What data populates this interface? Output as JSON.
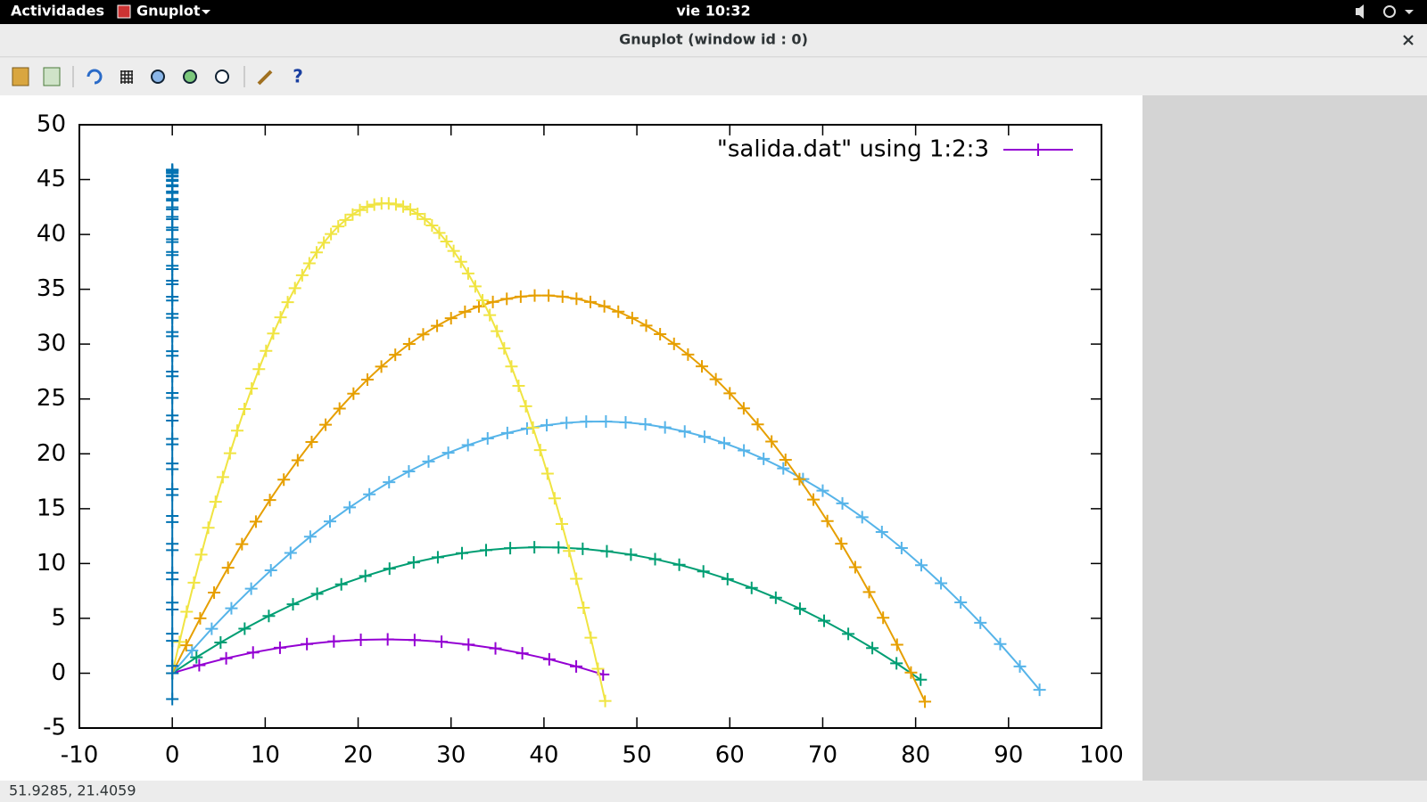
{
  "top_bar": {
    "activities": "Actividades",
    "app": "Gnuplot",
    "clock": "vie 10:32"
  },
  "window": {
    "title": "Gnuplot (window id : 0)"
  },
  "toolbar": {
    "help": "?"
  },
  "status_bar": {
    "coordinates": "51.9285,  21.4059"
  },
  "chart_data": {
    "type": "line",
    "xlim": [
      -10,
      100
    ],
    "ylim": [
      -5,
      50
    ],
    "xticks": [
      -10,
      0,
      10,
      20,
      30,
      40,
      50,
      60,
      70,
      80,
      90,
      100
    ],
    "yticks": [
      -5,
      0,
      5,
      10,
      15,
      20,
      25,
      30,
      35,
      40,
      45,
      50
    ],
    "grid": false,
    "legend_label": "\"salida.dat\" using 1:2:3",
    "legend_color": "#9400d3",
    "legend_position": "top right",
    "series": [
      {
        "color": "#9400d3",
        "x": [
          0,
          2.9,
          5.8,
          8.69,
          11.59,
          14.49,
          17.39,
          20.29,
          23.18,
          26.08,
          28.98,
          31.88,
          34.78,
          37.67,
          40.57,
          43.47,
          46.37
        ],
        "values": [
          0,
          0.73,
          1.36,
          1.89,
          2.32,
          2.66,
          2.9,
          3.04,
          3.08,
          3.02,
          2.87,
          2.61,
          2.26,
          1.81,
          1.27,
          0.62,
          -0.12
        ]
      },
      {
        "color": "#009e73",
        "x": [
          0,
          2.6,
          5.2,
          7.79,
          10.39,
          12.99,
          15.59,
          18.19,
          20.78,
          23.38,
          25.98,
          28.58,
          31.18,
          33.77,
          36.37,
          38.97,
          41.57,
          44.17,
          46.77,
          49.36,
          51.96,
          54.56,
          57.16,
          59.76,
          62.35,
          64.95,
          67.55,
          70.15,
          72.75,
          75.34,
          77.94,
          80.54
        ],
        "values": [
          0,
          1.45,
          2.8,
          4.06,
          5.22,
          6.28,
          7.24,
          8.1,
          8.86,
          9.53,
          10.1,
          10.57,
          10.94,
          11.22,
          11.4,
          11.48,
          11.46,
          11.34,
          11.12,
          10.81,
          10.4,
          9.89,
          9.28,
          8.58,
          7.78,
          6.88,
          5.88,
          4.78,
          3.58,
          2.29,
          0.9,
          -0.59
        ]
      },
      {
        "color": "#56b4e9",
        "x": [
          0,
          2.12,
          4.24,
          6.36,
          8.49,
          10.61,
          12.73,
          14.85,
          16.97,
          19.09,
          21.21,
          23.33,
          25.46,
          27.58,
          29.7,
          31.82,
          33.94,
          36.06,
          38.18,
          40.3,
          42.43,
          44.55,
          46.67,
          48.79,
          50.91,
          53.03,
          55.15,
          57.28,
          59.4,
          61.52,
          63.64,
          65.76,
          67.88,
          70,
          72.12,
          74.25,
          76.37,
          78.49,
          80.61,
          82.73,
          84.85,
          86.97,
          89.1,
          91.22,
          93.34
        ],
        "values": [
          0,
          2.07,
          4.05,
          5.92,
          7.7,
          9.38,
          10.96,
          12.45,
          13.84,
          15.12,
          16.31,
          17.41,
          18.4,
          19.3,
          20.09,
          20.79,
          21.4,
          21.9,
          22.31,
          22.61,
          22.83,
          22.94,
          22.95,
          22.87,
          22.69,
          22.41,
          22.03,
          21.56,
          20.98,
          20.31,
          19.54,
          18.67,
          17.7,
          16.64,
          15.48,
          14.22,
          12.87,
          11.41,
          9.85,
          8.2,
          6.45,
          4.6,
          2.66,
          0.62,
          -1.52
        ]
      },
      {
        "color": "#e69f00",
        "x": [
          0,
          1.5,
          3,
          4.5,
          6,
          7.5,
          9,
          10.5,
          12,
          13.5,
          15,
          16.5,
          18,
          19.5,
          21,
          22.5,
          24,
          25.5,
          27,
          28.5,
          30,
          31.5,
          33,
          34.5,
          36,
          37.5,
          39,
          40.5,
          42,
          43.5,
          45,
          46.5,
          48,
          49.5,
          51,
          52.5,
          54,
          55.5,
          57,
          58.5,
          60,
          61.5,
          63,
          64.5,
          66,
          67.5,
          69,
          70.5,
          72,
          73.5,
          75,
          76.5,
          78,
          79.5,
          81
        ],
        "values": [
          0,
          2.55,
          5,
          7.35,
          9.61,
          11.77,
          13.82,
          15.79,
          17.65,
          19.41,
          21.08,
          22.65,
          24.12,
          25.49,
          26.77,
          27.95,
          29.03,
          30.01,
          30.89,
          31.67,
          32.36,
          32.95,
          33.44,
          33.84,
          34.13,
          34.33,
          34.43,
          34.43,
          34.33,
          34.14,
          33.84,
          33.45,
          32.96,
          32.38,
          31.69,
          30.91,
          30.03,
          29.05,
          27.97,
          26.8,
          25.52,
          24.15,
          22.68,
          21.12,
          19.45,
          17.69,
          15.83,
          13.87,
          11.81,
          9.66,
          7.4,
          5.05,
          2.6,
          0.06,
          -2.59
        ]
      },
      {
        "color": "#f0e442",
        "x": [
          0,
          0.78,
          1.55,
          2.33,
          3.11,
          3.88,
          4.66,
          5.44,
          6.21,
          6.99,
          7.76,
          8.54,
          9.32,
          10.09,
          10.87,
          11.65,
          12.42,
          13.2,
          13.98,
          14.75,
          15.53,
          16.31,
          17.08,
          17.86,
          18.64,
          19.41,
          20.19,
          20.97,
          21.74,
          22.52,
          23.29,
          24.07,
          24.85,
          25.62,
          26.4,
          27.18,
          27.95,
          28.73,
          29.51,
          30.28,
          31.06,
          31.84,
          32.61,
          33.39,
          34.17,
          34.94,
          35.72,
          36.5,
          37.27,
          38.05,
          38.82,
          39.6,
          40.38,
          41.15,
          41.93,
          42.71,
          43.48,
          44.26,
          45.04,
          45.81,
          46.59
        ],
        "values": [
          0,
          2.85,
          5.6,
          8.25,
          10.81,
          13.26,
          15.62,
          17.88,
          20.05,
          22.11,
          24.08,
          25.95,
          27.72,
          29.39,
          30.97,
          32.44,
          33.82,
          35.1,
          36.28,
          37.37,
          38.36,
          39.25,
          40.04,
          40.73,
          41.32,
          41.82,
          42.22,
          42.52,
          42.72,
          42.83,
          42.83,
          42.74,
          42.55,
          42.27,
          41.88,
          41.4,
          40.82,
          40.14,
          39.36,
          38.49,
          37.51,
          36.44,
          35.27,
          34,
          32.64,
          31.18,
          29.62,
          27.96,
          26.2,
          24.34,
          22.39,
          20.34,
          18.19,
          15.94,
          13.6,
          11.15,
          8.61,
          5.97,
          3.24,
          0.4,
          -2.53
        ]
      },
      {
        "color": "#0072b2",
        "x": [
          0,
          0,
          0,
          0,
          0,
          0,
          0,
          0,
          0,
          0,
          0,
          0,
          0,
          0,
          0,
          0,
          0,
          0,
          0,
          0,
          0,
          0,
          0,
          0,
          0,
          0,
          0,
          0,
          0,
          0,
          0,
          0,
          0,
          0,
          0,
          0,
          0,
          0,
          0,
          0,
          0,
          0,
          0,
          0,
          0,
          0,
          0,
          0,
          0,
          0,
          0,
          0,
          0,
          0,
          0,
          0,
          0,
          0,
          0,
          0,
          0,
          0,
          0
        ],
        "values": [
          0,
          2.95,
          5.8,
          8.56,
          11.22,
          13.78,
          16.24,
          18.6,
          20.86,
          23.03,
          25.1,
          27.07,
          28.94,
          30.72,
          32.4,
          33.98,
          35.46,
          36.84,
          38.12,
          39.31,
          40.4,
          41.39,
          42.28,
          43.08,
          43.78,
          44.38,
          44.88,
          45.28,
          45.58,
          45.79,
          45.9,
          45.91,
          45.82,
          45.64,
          45.36,
          44.98,
          44.5,
          43.92,
          43.24,
          42.47,
          41.6,
          40.63,
          39.56,
          38.4,
          37.14,
          35.78,
          34.32,
          32.76,
          31.1,
          29.35,
          27.5,
          25.55,
          23.5,
          21.36,
          19.12,
          16.78,
          14.34,
          11.8,
          9.16,
          6.43,
          3.6,
          0.67,
          -2.36
        ]
      }
    ]
  }
}
